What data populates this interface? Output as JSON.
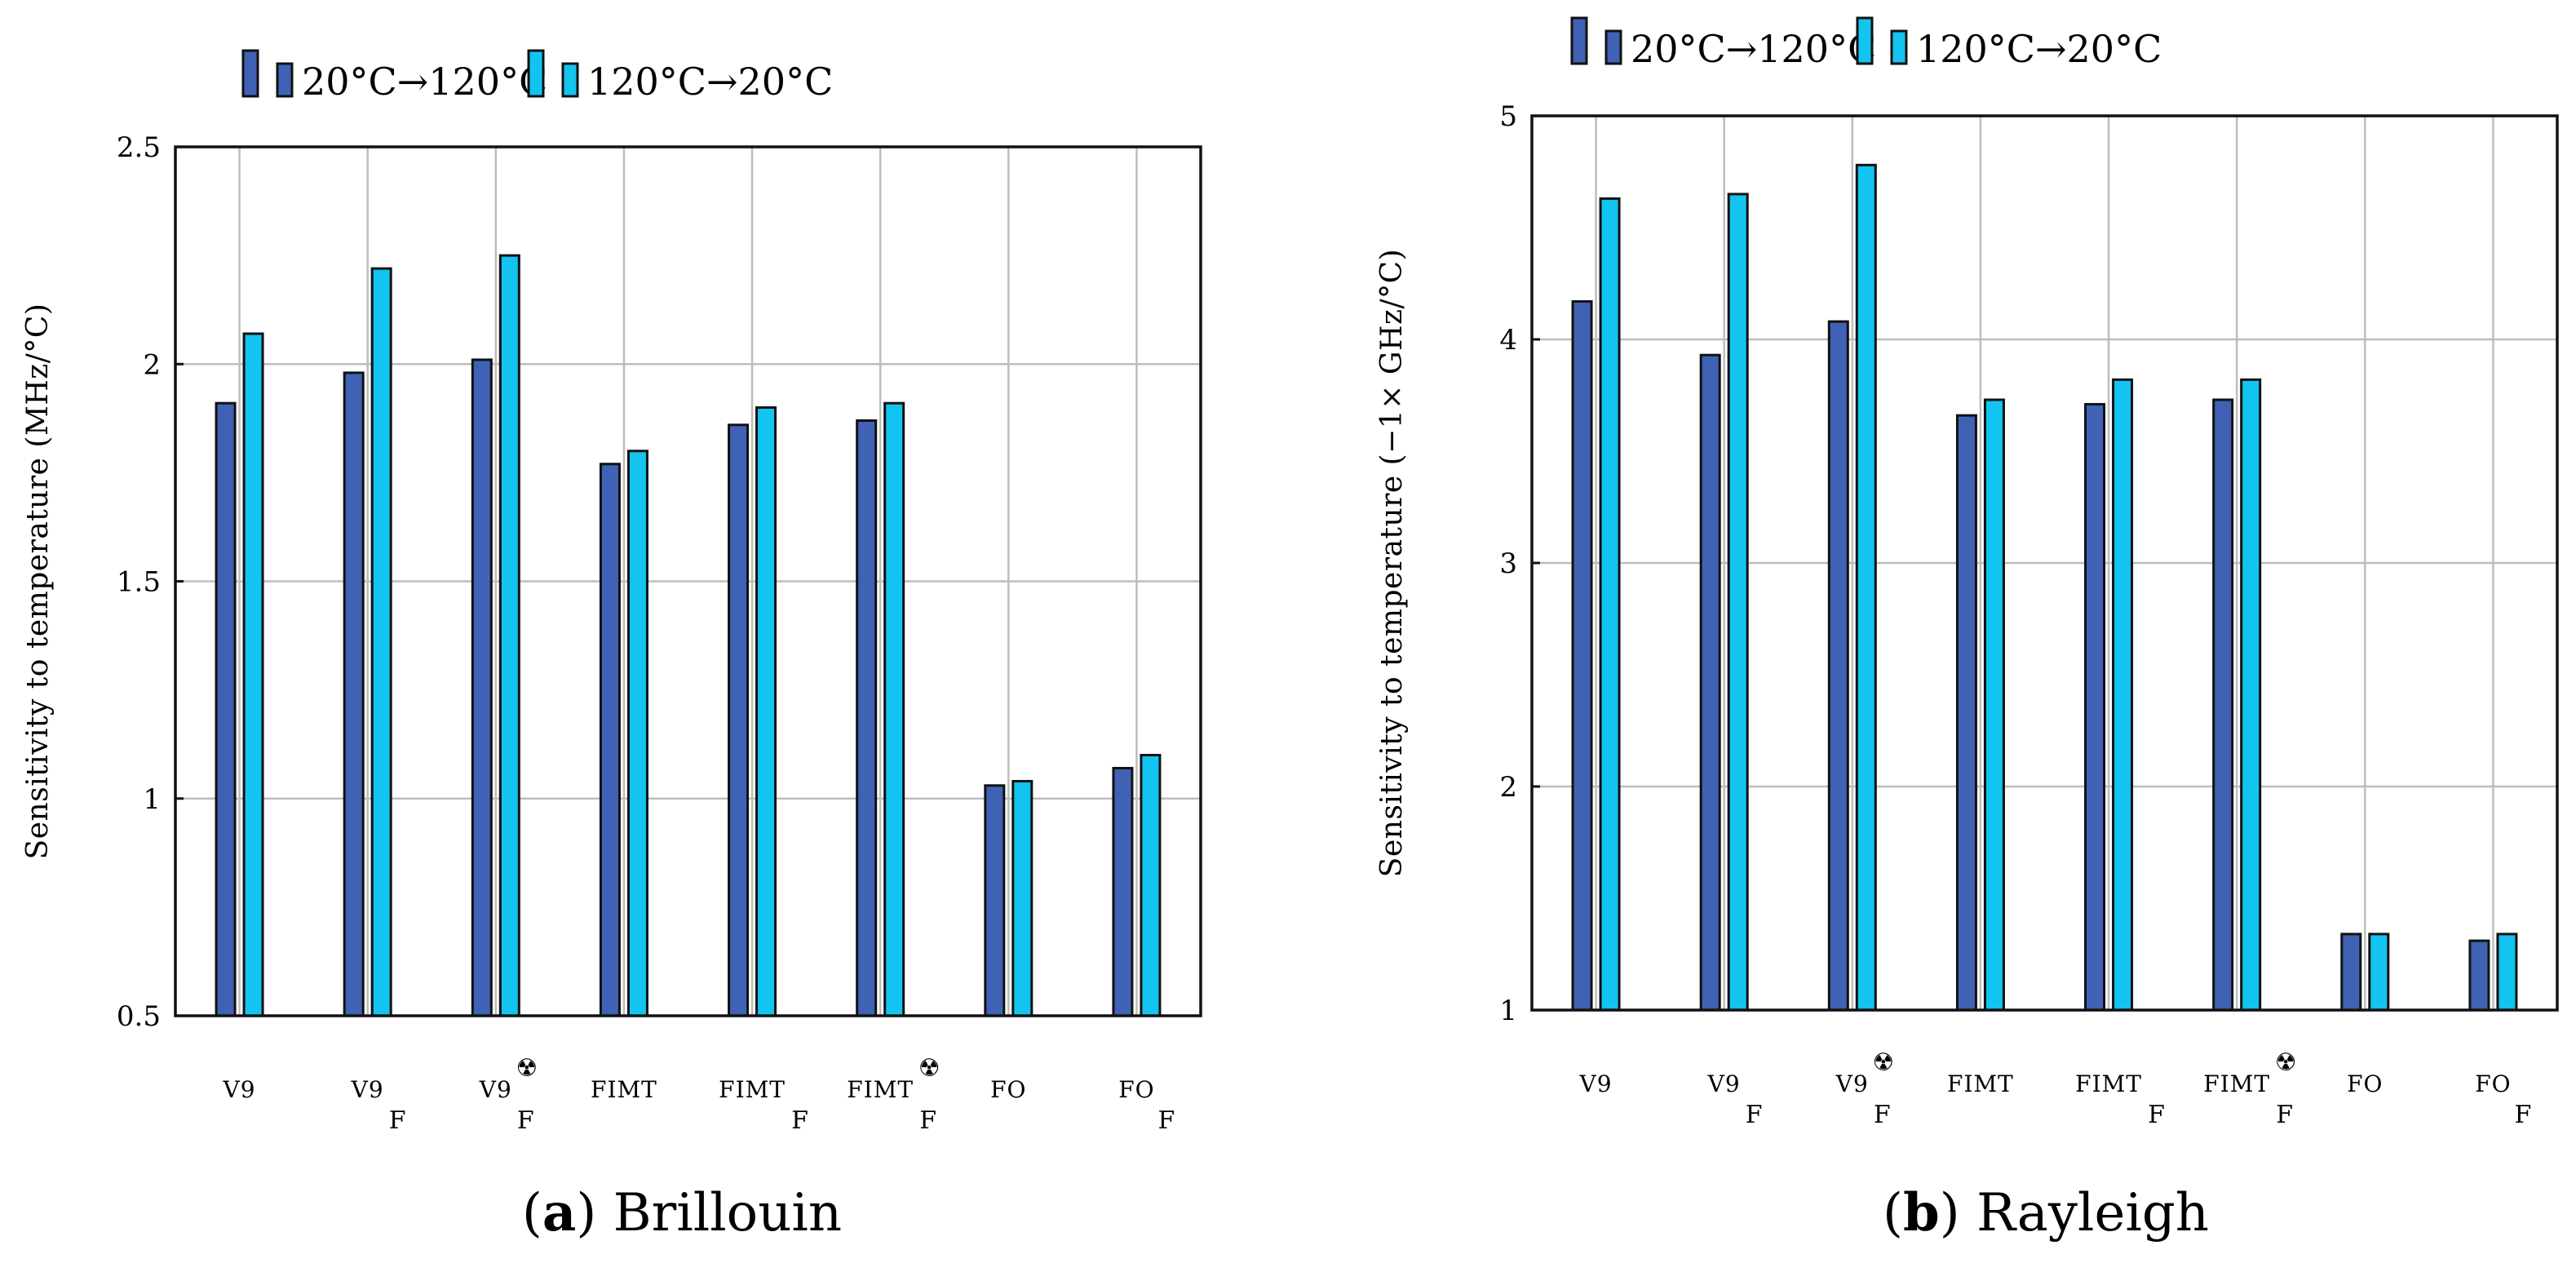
{
  "figure": {
    "series_names": [
      "20°C→120°C",
      "120°C→20°C"
    ],
    "series_colors": [
      "#4062b5",
      "#12c4ef"
    ],
    "radiation_symbol": "☢"
  },
  "chart_data": [
    {
      "type": "bar",
      "panel": "a",
      "caption_letter": "a",
      "caption_text": "Brillouin",
      "title": "",
      "xlabel": "",
      "ylabel": "Sensitivity to temperature (MHz/°C)",
      "ylim": [
        0.5,
        2.5
      ],
      "yticks": [
        0.5,
        1,
        1.5,
        2,
        2.5
      ],
      "ytick_labels": [
        "0.5",
        "1",
        "1.5",
        "2",
        "2.5"
      ],
      "grid": true,
      "legend_position": "top-left",
      "categories": [
        {
          "base": "V9",
          "sub": "",
          "rad": false
        },
        {
          "base": "V9",
          "sub": "F",
          "rad": false
        },
        {
          "base": "V9",
          "sub": "F",
          "rad": true
        },
        {
          "base": "FIMT",
          "sub": "",
          "rad": false
        },
        {
          "base": "FIMT",
          "sub": "F",
          "rad": false
        },
        {
          "base": "FIMT",
          "sub": "F",
          "rad": true
        },
        {
          "base": "FO",
          "sub": "",
          "rad": false
        },
        {
          "base": "FO",
          "sub": "F",
          "rad": false
        }
      ],
      "series": [
        {
          "name": "20°C→120°C",
          "values": [
            1.91,
            1.98,
            2.01,
            1.77,
            1.86,
            1.87,
            1.03,
            1.07
          ]
        },
        {
          "name": "120°C→20°C",
          "values": [
            2.07,
            2.22,
            2.25,
            1.8,
            1.9,
            1.91,
            1.04,
            1.1
          ]
        }
      ]
    },
    {
      "type": "bar",
      "panel": "b",
      "caption_letter": "b",
      "caption_text": "Rayleigh",
      "title": "",
      "xlabel": "",
      "ylabel": "Sensitivity to temperature (−1× GHz/°C)",
      "ylim": [
        1,
        5
      ],
      "yticks": [
        1,
        2,
        3,
        4,
        5
      ],
      "ytick_labels": [
        "1",
        "2",
        "3",
        "4",
        "5"
      ],
      "grid": true,
      "legend_position": "top-left",
      "categories": [
        {
          "base": "V9",
          "sub": "",
          "rad": false
        },
        {
          "base": "V9",
          "sub": "F",
          "rad": false
        },
        {
          "base": "V9",
          "sub": "F",
          "rad": true
        },
        {
          "base": "FIMT",
          "sub": "",
          "rad": false
        },
        {
          "base": "FIMT",
          "sub": "F",
          "rad": false
        },
        {
          "base": "FIMT",
          "sub": "F",
          "rad": true
        },
        {
          "base": "FO",
          "sub": "",
          "rad": false
        },
        {
          "base": "FO",
          "sub": "F",
          "rad": false
        }
      ],
      "series": [
        {
          "name": "20°C→120°C",
          "values": [
            4.17,
            3.93,
            4.08,
            3.66,
            3.71,
            3.73,
            1.34,
            1.31
          ]
        },
        {
          "name": "120°C→20°C",
          "values": [
            4.63,
            4.65,
            4.78,
            3.73,
            3.82,
            3.82,
            1.34,
            1.34
          ]
        }
      ]
    }
  ]
}
